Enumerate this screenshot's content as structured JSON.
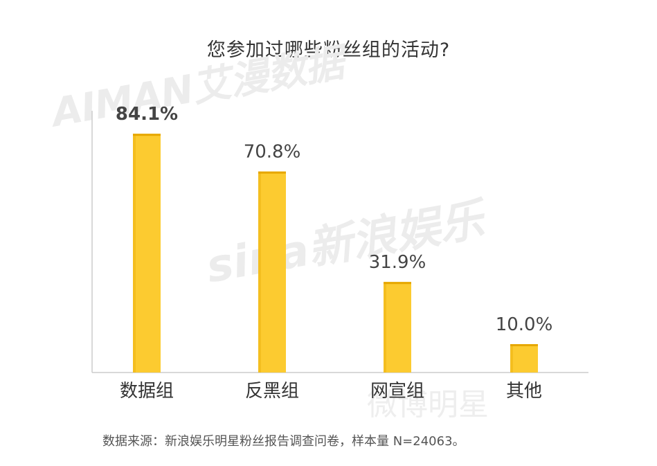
{
  "title": "您参加过哪些粉丝组的活动?",
  "source_note": "数据来源：新浪娱乐明星粉丝报告调查问卷，样本量 N=24063。",
  "watermarks": {
    "aiman": "AIMAN艾漫数据",
    "sina": "sina新浪娱乐",
    "weibo": "微博明星"
  },
  "colors": {
    "bar": "#FCCB30",
    "bar_top": "#E6A700",
    "axis": "#CCCCCC"
  },
  "chart_data": {
    "type": "bar",
    "title": "您参加过哪些粉丝组的活动?",
    "categories": [
      "数据组",
      "反黑组",
      "网宣组",
      "其他"
    ],
    "values": [
      84.1,
      70.8,
      31.9,
      10.0
    ],
    "value_labels": [
      "84.1%",
      "70.8%",
      "31.9%",
      "10.0%"
    ],
    "highlight_index": 0,
    "xlabel": "",
    "ylabel": "",
    "ylim": [
      0,
      100
    ],
    "grid": false,
    "legend": "none"
  }
}
